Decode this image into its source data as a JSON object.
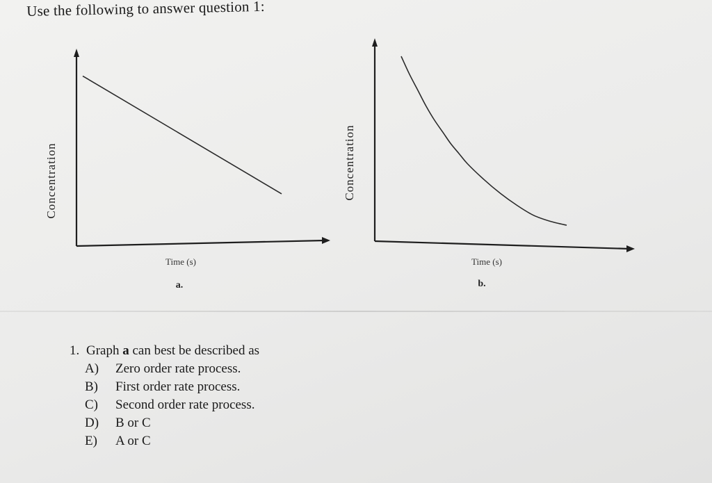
{
  "header": {
    "intro": "Use the following to answer question 1:"
  },
  "chart_data": [
    {
      "id": "a",
      "type": "line",
      "ylabel": "Concentration",
      "xlabel": "Time (s)",
      "graph_label": "a.",
      "shape": "linear decrease",
      "x": [
        0.0,
        1.0
      ],
      "y": [
        0.88,
        0.27
      ]
    },
    {
      "id": "b",
      "type": "line",
      "ylabel": "Concentration",
      "xlabel": "Time (s)",
      "graph_label": "b.",
      "shape": "curved decay",
      "x": [
        0.0,
        0.05,
        0.1,
        0.15,
        0.2,
        0.25,
        0.3,
        0.35,
        0.4,
        0.5,
        0.6,
        0.7,
        0.8,
        0.9,
        1.0
      ],
      "y": [
        0.93,
        0.84,
        0.76,
        0.68,
        0.61,
        0.55,
        0.49,
        0.44,
        0.39,
        0.31,
        0.24,
        0.18,
        0.13,
        0.1,
        0.08
      ]
    }
  ],
  "question": {
    "number": "1.",
    "stem_pre": "Graph ",
    "stem_bold": "a",
    "stem_post": " can best be described as",
    "options": [
      {
        "letter": "A)",
        "text": "Zero order rate process."
      },
      {
        "letter": "B)",
        "text": "First order rate process."
      },
      {
        "letter": "C)",
        "text": "Second order rate process."
      },
      {
        "letter": "D)",
        "text": "B or C"
      },
      {
        "letter": "E)",
        "text": "A or C"
      }
    ]
  }
}
